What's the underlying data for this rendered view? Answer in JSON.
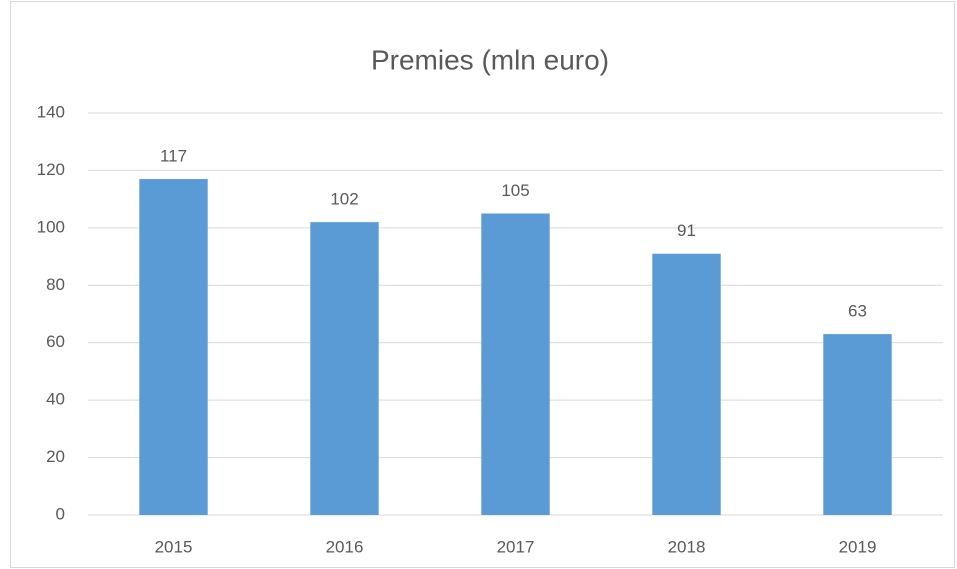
{
  "chart_data": {
    "type": "bar",
    "title": "Premies (mln euro)",
    "categories": [
      "2015",
      "2016",
      "2017",
      "2018",
      "2019"
    ],
    "values": [
      117,
      102,
      105,
      91,
      63
    ],
    "color": "#5b9bd5",
    "ylim": [
      0,
      140
    ],
    "yticks": [
      0,
      20,
      40,
      60,
      80,
      100,
      120,
      140
    ],
    "grid": true
  }
}
